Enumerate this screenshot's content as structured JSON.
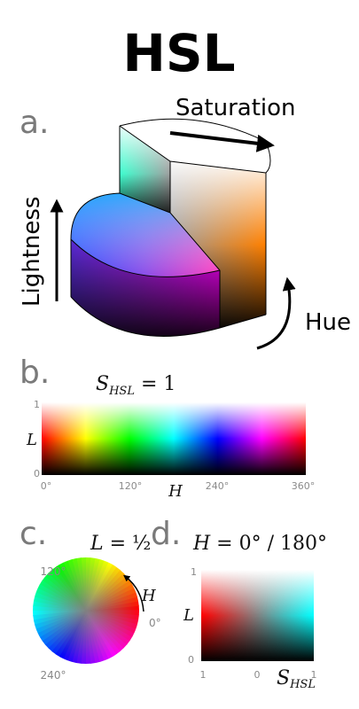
{
  "title": "HSL",
  "panels": {
    "a": "a.",
    "b": "b.",
    "c": "c.",
    "d": "d."
  },
  "cylinder": {
    "saturation_label": "Saturation",
    "lightness_label": "Lightness",
    "hue_label": "Hue"
  },
  "panel_b": {
    "eq_symbol": "S",
    "eq_subscript": "HSL",
    "eq_value": " = 1",
    "y_axis_letter": "L",
    "x_axis_letter": "H",
    "y_ticks": [
      "1",
      "0"
    ],
    "x_ticks": [
      "0°",
      "120°",
      "240°",
      "360°"
    ]
  },
  "panel_c": {
    "eq_symbol": "L",
    "eq_value": " = ½",
    "hue_letter": "H",
    "angle_ticks": [
      "120°",
      "0°",
      "240°"
    ]
  },
  "panel_d": {
    "eq_symbol": "H",
    "eq_value": " = 0° / 180°",
    "y_axis_letter": "L",
    "y_ticks": [
      "1",
      "0"
    ],
    "x_ticks": [
      "1",
      "0",
      "1"
    ],
    "x_axis_symbol": "S",
    "x_axis_subscript": "HSL"
  },
  "colors": {
    "background": "#ffffff",
    "text": "#000000",
    "panel_letters": "#7a7a7a",
    "ticks": "#8a8a8a"
  }
}
